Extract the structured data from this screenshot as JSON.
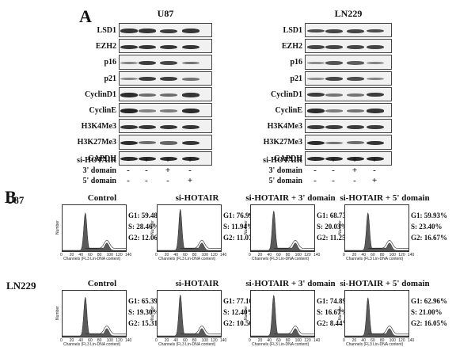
{
  "panel_a": {
    "letter": "A",
    "cell_lines": [
      "U87",
      "LN229"
    ],
    "blots": [
      "LSD1",
      "EZH2",
      "p16",
      "p21",
      "CyclinD1",
      "CyclinE",
      "H3K4Me3",
      "H3K27Me3",
      "GAPDH"
    ],
    "conditions": [
      {
        "label": "si-HOTAIR",
        "marks": [
          "-",
          "+",
          "+",
          "+"
        ]
      },
      {
        "label": "3' domain",
        "marks": [
          "-",
          "-",
          "+",
          "-"
        ]
      },
      {
        "label": "5' domain",
        "marks": [
          "-",
          "-",
          "-",
          "+"
        ]
      }
    ],
    "band_intensity": {
      "U87": {
        "LSD1": [
          0.85,
          0.85,
          0.8,
          0.85
        ],
        "EZH2": [
          0.85,
          0.85,
          0.85,
          0.85
        ],
        "p16": [
          0.35,
          0.8,
          0.75,
          0.45
        ],
        "p21": [
          0.35,
          0.8,
          0.8,
          0.45
        ],
        "CyclinD1": [
          0.9,
          0.5,
          0.5,
          0.85
        ],
        "CyclinE": [
          0.95,
          0.35,
          0.4,
          0.9
        ],
        "H3K4Me3": [
          0.85,
          0.85,
          0.85,
          0.85
        ],
        "H3K27Me3": [
          0.9,
          0.5,
          0.55,
          0.85
        ],
        "GAPDH": [
          0.9,
          0.9,
          0.9,
          0.9
        ]
      },
      "LN229": {
        "LSD1": [
          0.7,
          0.75,
          0.75,
          0.7
        ],
        "EZH2": [
          0.75,
          0.75,
          0.75,
          0.75
        ],
        "p16": [
          0.3,
          0.65,
          0.6,
          0.35
        ],
        "p21": [
          0.3,
          0.75,
          0.7,
          0.35
        ],
        "CyclinD1": [
          0.8,
          0.45,
          0.45,
          0.8
        ],
        "CyclinE": [
          0.9,
          0.4,
          0.45,
          0.85
        ],
        "H3K4Me3": [
          0.8,
          0.8,
          0.8,
          0.8
        ],
        "H3K27Me3": [
          0.9,
          0.45,
          0.5,
          0.85
        ],
        "GAPDH": [
          0.9,
          0.9,
          0.9,
          0.9
        ]
      }
    }
  },
  "panel_b": {
    "letter": "B",
    "x_axis_label": "Channels (FL3 Lin-DNA content)",
    "y_axis_label": "Number",
    "x_ticks": [
      "0",
      "20",
      "40",
      "60",
      "80",
      "100",
      "120",
      "140"
    ],
    "rows": [
      {
        "cell_line": "U87",
        "panels": [
          {
            "title": "Control",
            "G1": "G1: 59.48%",
            "S": "S: 28.46%",
            "G2": "G2: 12.06%",
            "g1_fraction": 0.5948
          },
          {
            "title": "si-HOTAIR",
            "G1": "G1: 76.99%",
            "S": "S: 11.94%",
            "G2": "G2: 11.07%",
            "g1_fraction": 0.7699
          },
          {
            "title": "si-HOTAIR + 3' domain",
            "G1": "G1: 68.73%",
            "S": "S: 20.03%",
            "G2": "G2: 11.25%",
            "g1_fraction": 0.6873
          },
          {
            "title": "si-HOTAIR + 5' domain",
            "G1": "G1: 59.93%",
            "S": "S: 23.40%",
            "G2": "G2: 16.67%",
            "g1_fraction": 0.5993
          }
        ]
      },
      {
        "cell_line": "LN229",
        "panels": [
          {
            "title": "Control",
            "G1": "G1: 65.39%",
            "S": "S: 19.30%",
            "G2": "G2: 15.31%",
            "g1_fraction": 0.6539
          },
          {
            "title": "si-HOTAIR",
            "G1": "G1: 77.10%",
            "S": "S: 12.40%",
            "G2": "G2: 10.50%",
            "g1_fraction": 0.771
          },
          {
            "title": "si-HOTAIR + 3' domain",
            "G1": "G1: 74.89%",
            "S": "S: 16.67%",
            "G2": "G2: 8.44%",
            "g1_fraction": 0.7489
          },
          {
            "title": "si-HOTAIR + 5' domain",
            "G1": "G1: 62.96%",
            "S": "S: 21.00%",
            "G2": "G2: 16.05%",
            "g1_fraction": 0.6296
          }
        ]
      }
    ]
  }
}
